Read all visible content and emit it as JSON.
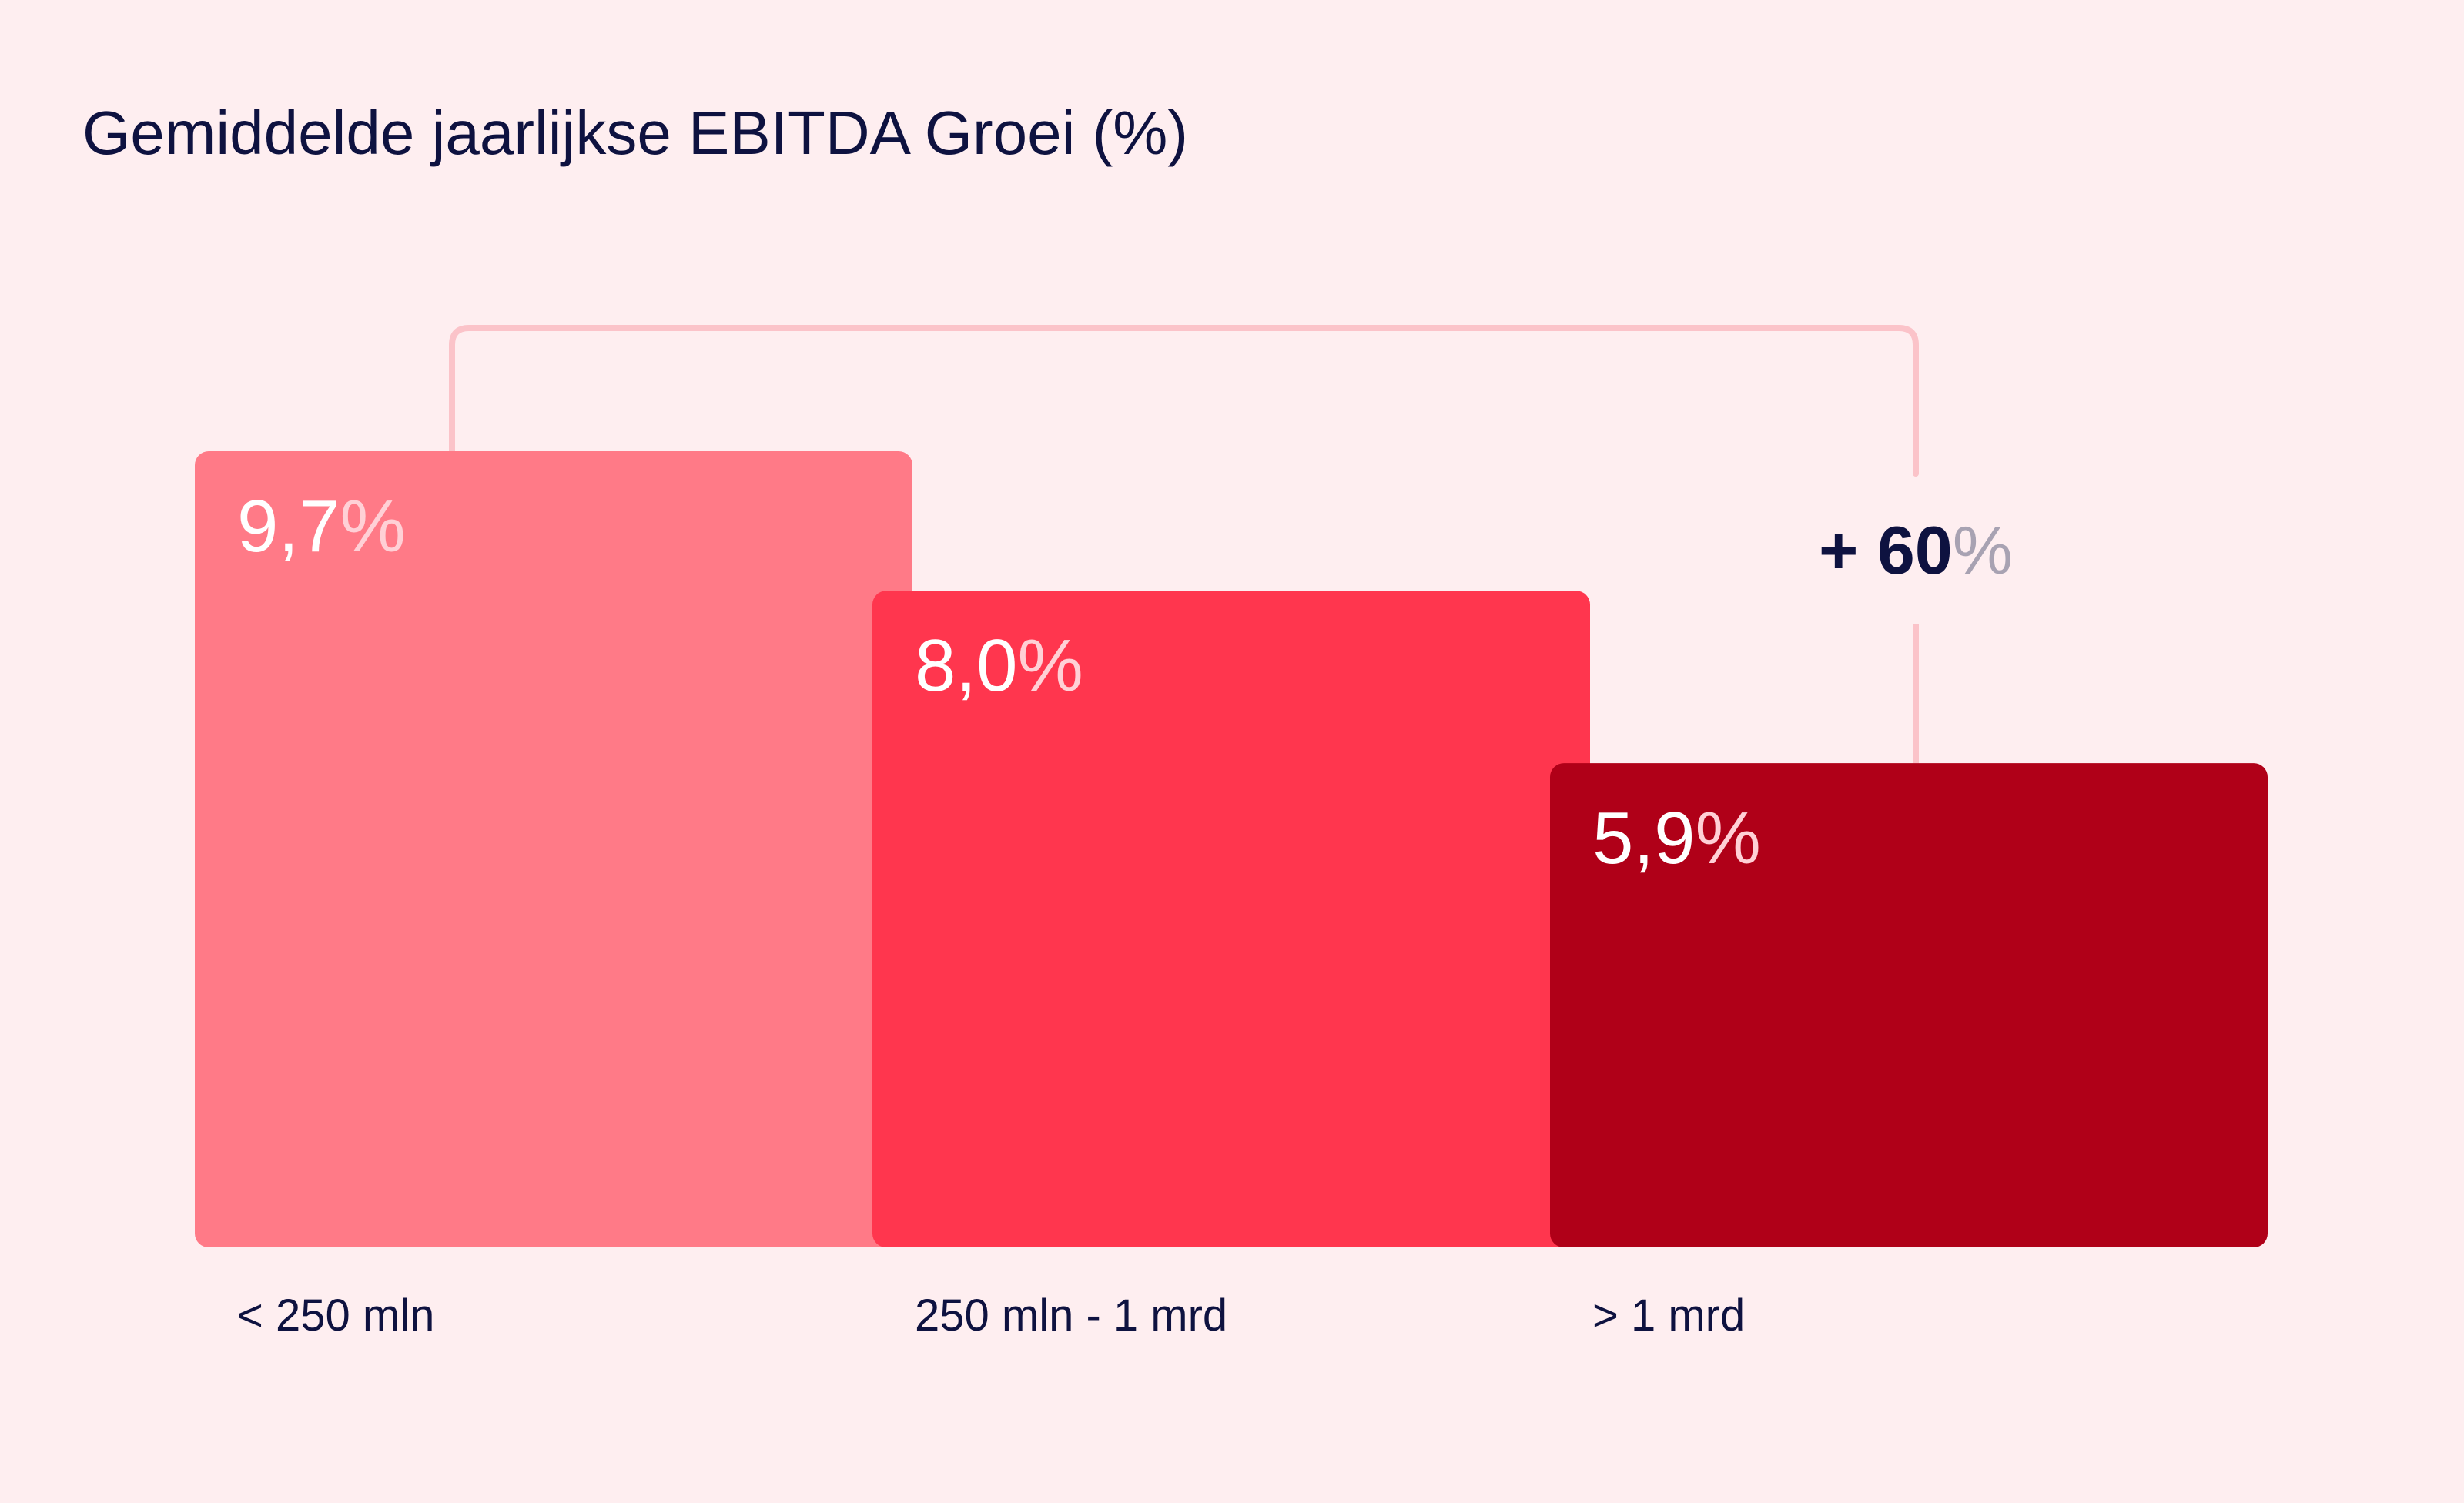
{
  "chart_data": {
    "type": "bar",
    "title": "Gemiddelde jaarlijkse EBITDA Groei (%)",
    "categories": [
      "< 250 mln",
      "250 mln - 1 mrd",
      "> 1 mrd"
    ],
    "values": [
      9.7,
      8.0,
      5.9
    ],
    "value_labels": [
      "9,7",
      "8,0",
      "5,9"
    ],
    "value_suffix": "%",
    "ylim": [
      0,
      9.7
    ],
    "grid": false,
    "annotation": {
      "from_category": "< 250 mln",
      "to_category": "> 1 mrd",
      "prefix": "+ ",
      "value": "60",
      "suffix": "%"
    },
    "colors": {
      "bars": [
        "#FF7A87",
        "#FF364E",
        "#B00018"
      ],
      "title_text": "#0E1240",
      "value_text": "#FFFFFF",
      "value_suffix_text": "#FFD0D6",
      "annotation_text": "#0E1240",
      "annotation_suffix_text": "#A8A2B2",
      "bracket": "#FBC3C9",
      "background": "#FEEEF0"
    }
  }
}
